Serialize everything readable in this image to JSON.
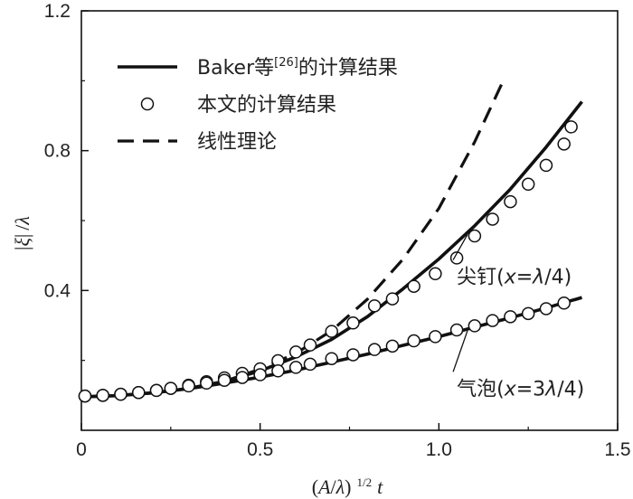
{
  "chart_data": {
    "type": "line",
    "xlabel": {
      "open": "(",
      "A": "A",
      "slash": "/",
      "lambda": "λ",
      "close": ")",
      "exp": "1/2",
      "t": "t"
    },
    "ylabel": {
      "bar1": "|",
      "xi": "ξ",
      "bar2": "|",
      "slash": "/",
      "lambda": "λ"
    },
    "xlim": [
      0,
      1.5
    ],
    "ylim": [
      0,
      1.2
    ],
    "xticks": [
      0,
      0.5,
      1.0,
      1.5
    ],
    "xtick_labels": [
      "0",
      "0.5",
      "1.0",
      "1.5"
    ],
    "yticks": [
      0.4,
      0.8,
      1.2
    ],
    "ytick_labels": [
      "0.4",
      "0.8",
      "1.2"
    ],
    "legend": {
      "position": "top-left",
      "entries": [
        {
          "style": "solid",
          "text": "Baker等",
          "sup": "[26]",
          "text2": "的计算结果"
        },
        {
          "style": "circle",
          "text": "本文的计算结果"
        },
        {
          "style": "dashed",
          "text": "线性理论"
        }
      ]
    },
    "annotations": [
      {
        "prefix": "尖钉(",
        "var": "x",
        "eq": "=",
        "lam": "λ",
        "suffix": "/4)",
        "target_x": 1.08,
        "target_y": 0.56,
        "text_x": 1.05,
        "text_y": 0.42
      },
      {
        "prefix": "气泡(",
        "var": "x",
        "eq": "=3",
        "lam": "λ",
        "suffix": "/4)",
        "target_x": 1.08,
        "target_y": 0.285,
        "text_x": 1.05,
        "text_y": 0.1
      }
    ],
    "series": [
      {
        "style": "solid",
        "x": [
          0,
          0.1,
          0.2,
          0.3,
          0.4,
          0.5,
          0.6,
          0.7,
          0.8,
          0.9,
          1.0,
          1.1,
          1.2,
          1.3,
          1.4
        ],
        "y": [
          0.096,
          0.099,
          0.107,
          0.12,
          0.14,
          0.17,
          0.21,
          0.26,
          0.325,
          0.405,
          0.49,
          0.585,
          0.69,
          0.81,
          0.94
        ]
      },
      {
        "style": "solid",
        "x": [
          0,
          0.1,
          0.2,
          0.3,
          0.4,
          0.5,
          0.6,
          0.7,
          0.8,
          0.9,
          1.0,
          1.1,
          1.2,
          1.3,
          1.4
        ],
        "y": [
          0.096,
          0.099,
          0.107,
          0.119,
          0.135,
          0.152,
          0.172,
          0.195,
          0.218,
          0.243,
          0.268,
          0.295,
          0.322,
          0.35,
          0.38
        ]
      },
      {
        "style": "dashed",
        "x": [
          0.4,
          0.5,
          0.6,
          0.7,
          0.8,
          0.9,
          1.0,
          1.1,
          1.18
        ],
        "y": [
          0.14,
          0.175,
          0.22,
          0.285,
          0.375,
          0.49,
          0.635,
          0.825,
          1.0
        ]
      },
      {
        "style": "circle",
        "x": [
          0.01,
          0.06,
          0.11,
          0.16,
          0.21,
          0.25,
          0.3,
          0.35,
          0.4,
          0.45,
          0.5,
          0.55,
          0.6,
          0.64,
          0.7,
          0.76,
          0.82,
          0.87,
          0.93,
          0.99,
          1.05,
          1.1,
          1.15,
          1.2,
          1.25,
          1.3,
          1.35
        ],
        "y": [
          0.098,
          0.1,
          0.103,
          0.108,
          0.114,
          0.12,
          0.129,
          0.139,
          0.15,
          0.163,
          0.176,
          0.199,
          0.224,
          0.244,
          0.283,
          0.307,
          0.356,
          0.376,
          0.412,
          0.448,
          0.493,
          0.556,
          0.604,
          0.654,
          0.704,
          0.758,
          0.819
        ]
      },
      {
        "style": "circle",
        "x": [
          0.01,
          0.06,
          0.11,
          0.16,
          0.21,
          0.25,
          0.3,
          0.35,
          0.4,
          0.45,
          0.5,
          0.55,
          0.6,
          0.64,
          0.7,
          0.76,
          0.82,
          0.87,
          0.93,
          0.99,
          1.05,
          1.1,
          1.15,
          1.2,
          1.25,
          1.3,
          1.35
        ],
        "y": [
          0.098,
          0.1,
          0.103,
          0.108,
          0.114,
          0.12,
          0.127,
          0.135,
          0.143,
          0.151,
          0.159,
          0.17,
          0.18,
          0.189,
          0.205,
          0.216,
          0.231,
          0.241,
          0.256,
          0.268,
          0.287,
          0.299,
          0.314,
          0.325,
          0.334,
          0.348,
          0.364
        ]
      },
      {
        "style": "circle",
        "x": [
          1.37
        ],
        "y": [
          0.868
        ]
      }
    ]
  }
}
